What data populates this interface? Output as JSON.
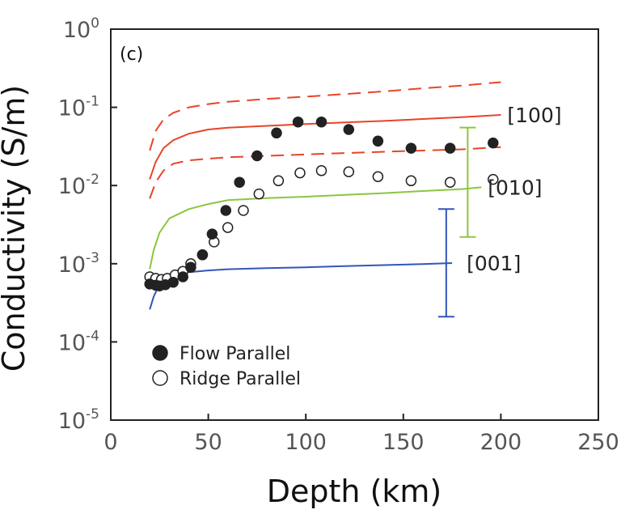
{
  "chart_data": {
    "type": "scatter",
    "panel_label": "(c)",
    "xlabel": "Depth (km)",
    "ylabel": "Conductivity (S/m)",
    "xlim": [
      0,
      250
    ],
    "ylim": [
      1e-05,
      1
    ],
    "yscale": "log",
    "xticks": [
      "0",
      "50",
      "100",
      "150",
      "200",
      "250"
    ],
    "yticks": [
      {
        "base": "10",
        "exp": "-5"
      },
      {
        "base": "10",
        "exp": "-4"
      },
      {
        "base": "10",
        "exp": "-3"
      },
      {
        "base": "10",
        "exp": "-2"
      },
      {
        "base": "10",
        "exp": "-1"
      },
      {
        "base": "10",
        "exp": "0"
      }
    ],
    "lines": [
      {
        "label": "[100]",
        "color": "#e8442a",
        "dash": false,
        "points": [
          [
            20,
            0.012
          ],
          [
            23,
            0.02
          ],
          [
            27,
            0.03
          ],
          [
            32,
            0.038
          ],
          [
            40,
            0.046
          ],
          [
            50,
            0.052
          ],
          [
            60,
            0.055
          ],
          [
            80,
            0.058
          ],
          [
            100,
            0.061
          ],
          [
            120,
            0.064
          ],
          [
            140,
            0.067
          ],
          [
            160,
            0.071
          ],
          [
            180,
            0.075
          ],
          [
            200,
            0.08
          ]
        ]
      },
      {
        "label": "",
        "color": "#e8442a",
        "dash": true,
        "points": [
          [
            20,
            0.028
          ],
          [
            23,
            0.05
          ],
          [
            27,
            0.07
          ],
          [
            32,
            0.085
          ],
          [
            40,
            0.1
          ],
          [
            50,
            0.11
          ],
          [
            60,
            0.118
          ],
          [
            80,
            0.128
          ],
          [
            100,
            0.137
          ],
          [
            120,
            0.148
          ],
          [
            140,
            0.16
          ],
          [
            160,
            0.175
          ],
          [
            180,
            0.19
          ],
          [
            200,
            0.21
          ]
        ]
      },
      {
        "label": "",
        "color": "#e8442a",
        "dash": true,
        "points": [
          [
            20,
            0.0068
          ],
          [
            23,
            0.011
          ],
          [
            27,
            0.0155
          ],
          [
            32,
            0.019
          ],
          [
            40,
            0.021
          ],
          [
            50,
            0.022
          ],
          [
            60,
            0.023
          ],
          [
            80,
            0.024
          ],
          [
            100,
            0.025
          ],
          [
            120,
            0.026
          ],
          [
            140,
            0.027
          ],
          [
            160,
            0.028
          ],
          [
            180,
            0.029
          ],
          [
            200,
            0.031
          ]
        ]
      },
      {
        "label": "[010]",
        "color": "#8cc63f",
        "dash": false,
        "points": [
          [
            20,
            0.00085
          ],
          [
            22,
            0.0015
          ],
          [
            25,
            0.0025
          ],
          [
            30,
            0.0038
          ],
          [
            40,
            0.005
          ],
          [
            50,
            0.0058
          ],
          [
            60,
            0.0065
          ],
          [
            80,
            0.0069
          ],
          [
            100,
            0.0072
          ],
          [
            120,
            0.0076
          ],
          [
            140,
            0.008
          ],
          [
            160,
            0.0085
          ],
          [
            180,
            0.009
          ],
          [
            190,
            0.0095
          ]
        ]
      },
      {
        "label": "[001]",
        "color": "#3355bb",
        "dash": false,
        "points": [
          [
            20,
            0.00026
          ],
          [
            22,
            0.00038
          ],
          [
            25,
            0.00055
          ],
          [
            30,
            0.00068
          ],
          [
            40,
            0.00078
          ],
          [
            50,
            0.00082
          ],
          [
            60,
            0.00085
          ],
          [
            80,
            0.00088
          ],
          [
            100,
            0.0009
          ],
          [
            120,
            0.00093
          ],
          [
            140,
            0.00096
          ],
          [
            160,
            0.00099
          ],
          [
            175,
            0.00102
          ]
        ]
      }
    ],
    "error_bars": [
      {
        "x": 183,
        "low": 0.0022,
        "high": 0.055,
        "color": "#8cc63f"
      },
      {
        "x": 172,
        "low": 0.00021,
        "high": 0.005,
        "color": "#3355bb"
      }
    ],
    "series": [
      {
        "name": "Flow Parallel",
        "marker": "filled-circle",
        "x": [
          20,
          23,
          25,
          28,
          32,
          37,
          41,
          47,
          52,
          59,
          66,
          75,
          85,
          96,
          108,
          122,
          137,
          154,
          174,
          196
        ],
        "y": [
          0.00055,
          0.00053,
          0.00052,
          0.00054,
          0.00058,
          0.00068,
          0.0009,
          0.0013,
          0.0024,
          0.0048,
          0.011,
          0.024,
          0.047,
          0.065,
          0.065,
          0.052,
          0.037,
          0.03,
          0.03,
          0.035
        ]
      },
      {
        "name": "Ridge Parallel",
        "marker": "open-circle",
        "x": [
          20,
          23,
          26,
          29,
          33,
          37,
          41,
          47,
          53,
          60,
          68,
          76,
          86,
          97,
          108,
          122,
          137,
          154,
          174,
          196
        ],
        "y": [
          0.00068,
          0.00065,
          0.00063,
          0.00065,
          0.00072,
          0.0008,
          0.001,
          0.0013,
          0.0019,
          0.0029,
          0.0048,
          0.0078,
          0.0115,
          0.0145,
          0.0155,
          0.015,
          0.013,
          0.0115,
          0.011,
          0.012
        ]
      }
    ],
    "grid": false,
    "legend_position": "bottom-left"
  }
}
